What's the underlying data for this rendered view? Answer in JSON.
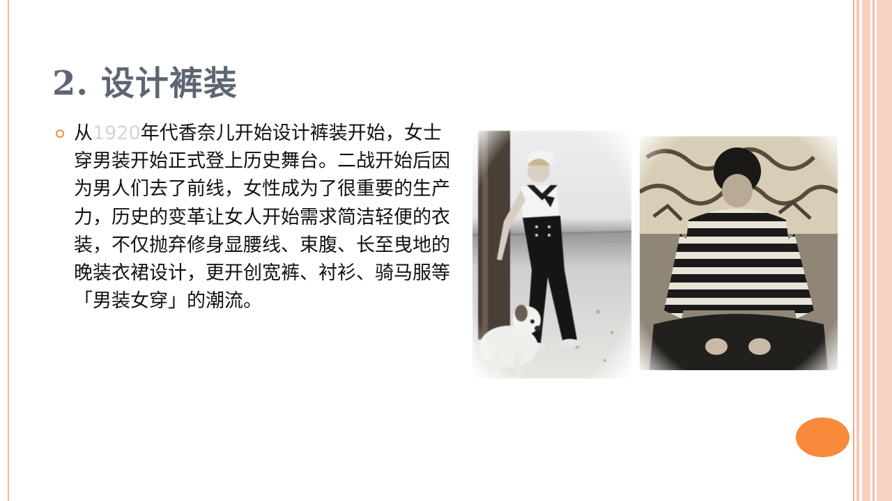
{
  "slide": {
    "title": "2. 设计裤装",
    "body": {
      "prefix": "从",
      "year": "1920",
      "rest": "年代香奈儿开始设计裤装开始，女士穿男装开始正式登上历史舞台。二战开始后因为男人们去了前线，女性成为了很重要的生产力，历史的变革让女人开始需求简洁轻便的衣装，不仅抛弃修身显腰线、束腹、长至曳地的晚装衣裙设计，更开创宽裤、衬衫、骑马服等「男装女穿」的潮流。"
    }
  },
  "colors": {
    "title": "#5d6672",
    "bullet": "#f58a3c",
    "accent_oval": "#f98a3b",
    "border": "#f6c7b1"
  },
  "icons": {
    "bullet": "hollow-circle-bullet-icon"
  }
}
